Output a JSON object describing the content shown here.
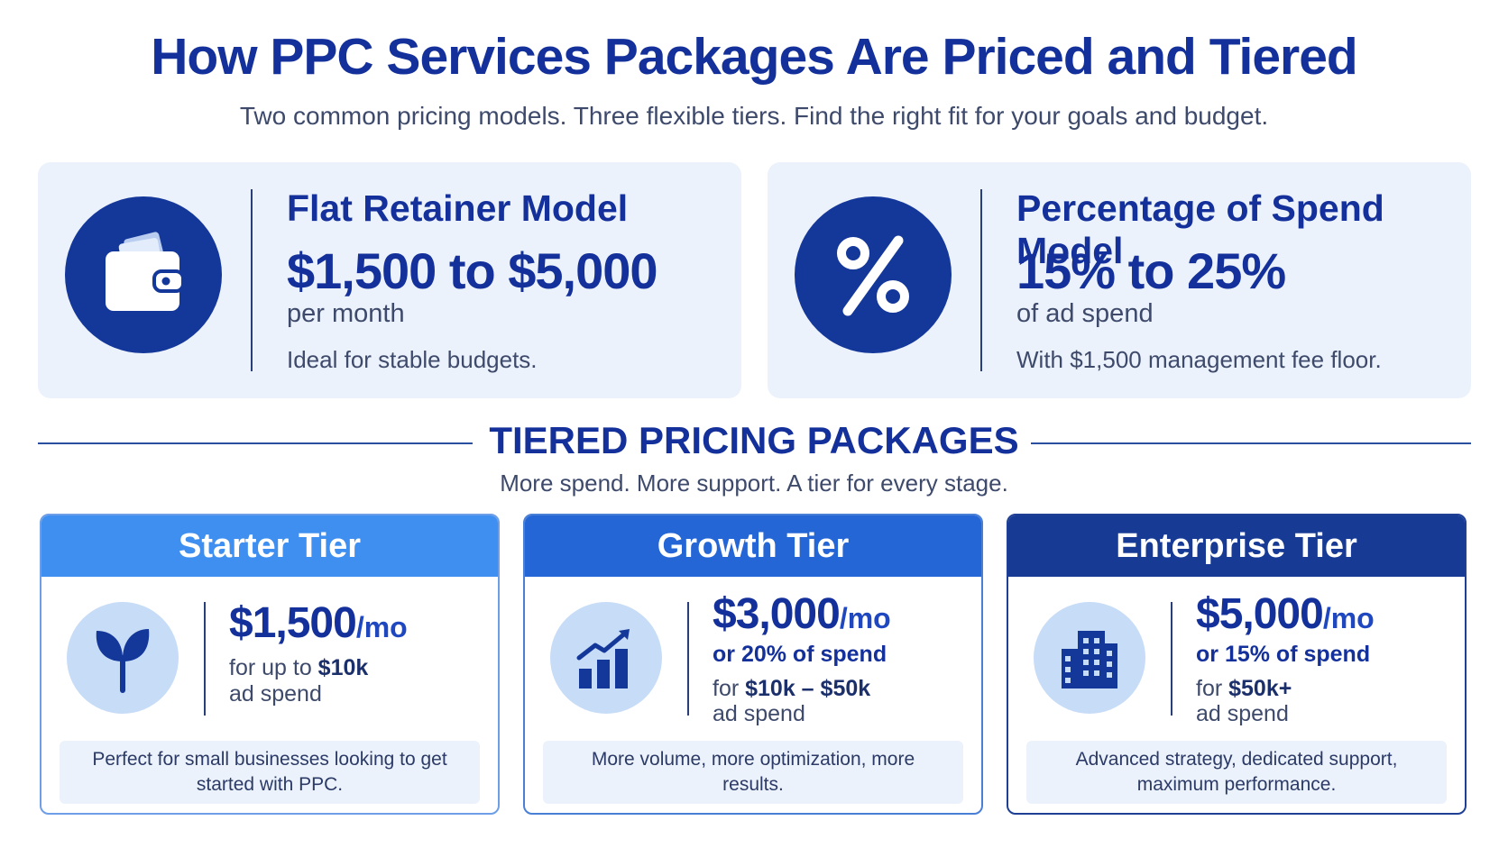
{
  "header": {
    "title": "How PPC Services Packages Are Priced and Tiered",
    "subtitle": "Two common pricing models. Three flexible tiers. Find the right fit for your goals and budget."
  },
  "models": [
    {
      "icon": "wallet-icon",
      "name": "Flat Retainer Model",
      "price": "$1,500 to $5,000",
      "unit": "per month",
      "note": "Ideal for stable budgets."
    },
    {
      "icon": "percent-icon",
      "name": "Percentage of Spend Model",
      "price": "15% to 25%",
      "unit": "of ad spend",
      "note": "With $1,500 management fee floor."
    }
  ],
  "tiers_section": {
    "title": "TIERED PRICING PACKAGES",
    "subtitle": "More spend. More support. A tier for every stage."
  },
  "tiers": [
    {
      "name": "Starter Tier",
      "header_color": "#3f8ff0",
      "icon": "sprout-icon",
      "price": "$1,500",
      "per": "/mo",
      "alt": "",
      "range_prefix": "for up to ",
      "range_value": "$10k",
      "range_suffix": "ad spend",
      "description": "Perfect for small businesses looking to get started with PPC."
    },
    {
      "name": "Growth Tier",
      "header_color": "#2566d6",
      "icon": "growth-chart-icon",
      "price": "$3,000",
      "per": "/mo",
      "alt": "or 20% of spend",
      "range_prefix": "for ",
      "range_value": "$10k – $50k",
      "range_suffix": "ad spend",
      "description": "More volume, more optimization, more results."
    },
    {
      "name": "Enterprise Tier",
      "header_color": "#173a94",
      "icon": "building-icon",
      "price": "$5,000",
      "per": "/mo",
      "alt": "or 15% of spend",
      "range_prefix": "for ",
      "range_value": "$50k+",
      "range_suffix": "ad spend",
      "description": "Advanced strategy, dedicated support, maximum performance."
    }
  ]
}
